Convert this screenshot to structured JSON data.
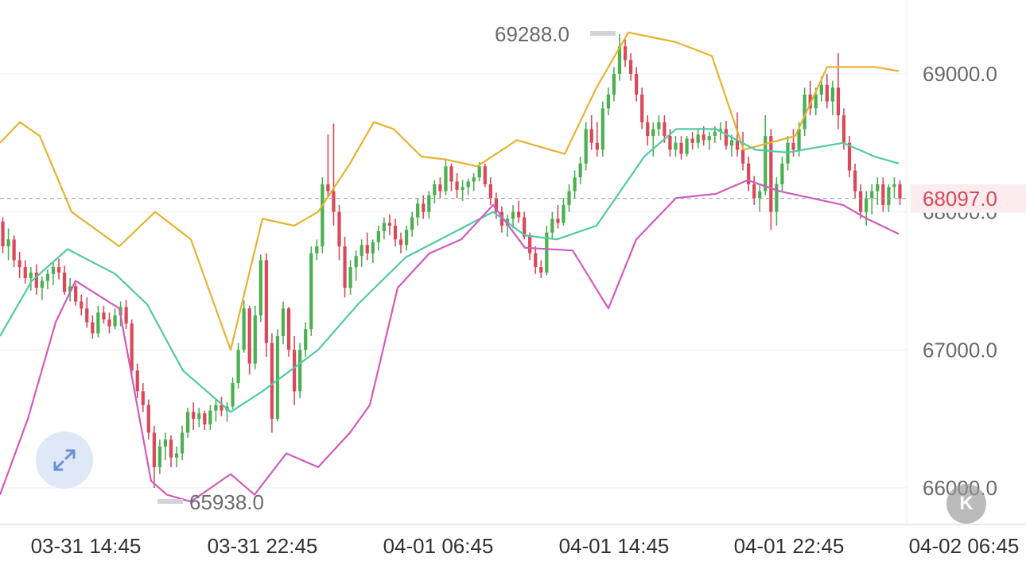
{
  "chart_data": {
    "type": "candlestick",
    "x_start_label": "03-31 14:45",
    "time_labels": [
      "03-31 14:45",
      "03-31 22:45",
      "04-01 06:45",
      "04-01 14:45",
      "04-01 22:45",
      "04-02 06:45"
    ],
    "y_ticks": [
      "69000.0",
      "68000.0",
      "67000.0",
      "66000.0"
    ],
    "ylim": [
      65850,
      69420
    ],
    "max_label": "69288.0",
    "min_label": "65938.0",
    "last_price": "68097.0",
    "last_price_value": 68097,
    "candles": [
      [
        67930,
        67960,
        67700,
        67750
      ],
      [
        67750,
        67880,
        67650,
        67800
      ],
      [
        67800,
        67830,
        67600,
        67650
      ],
      [
        67650,
        67710,
        67520,
        67600
      ],
      [
        67600,
        67650,
        67480,
        67520
      ],
      [
        67520,
        67600,
        67430,
        67560
      ],
      [
        67560,
        67620,
        67400,
        67450
      ],
      [
        67450,
        67530,
        67360,
        67500
      ],
      [
        67500,
        67580,
        67440,
        67550
      ],
      [
        67550,
        67640,
        67470,
        67600
      ],
      [
        67600,
        67660,
        67510,
        67560
      ],
      [
        67560,
        67610,
        67400,
        67420
      ],
      [
        67420,
        67520,
        67350,
        67460
      ],
      [
        67460,
        67480,
        67320,
        67350
      ],
      [
        67350,
        67400,
        67250,
        67300
      ],
      [
        67300,
        67380,
        67160,
        67200
      ],
      [
        67200,
        67250,
        67080,
        67120
      ],
      [
        67120,
        67320,
        67090,
        67270
      ],
      [
        67270,
        67320,
        67190,
        67220
      ],
      [
        67220,
        67270,
        67120,
        67170
      ],
      [
        67170,
        67300,
        67150,
        67250
      ],
      [
        67250,
        67350,
        67170,
        67310
      ],
      [
        67310,
        67360,
        67150,
        67190
      ],
      [
        67190,
        67220,
        66800,
        66850
      ],
      [
        66850,
        66900,
        66650,
        66700
      ],
      [
        66700,
        66760,
        66550,
        66600
      ],
      [
        66600,
        66640,
        66350,
        66400
      ],
      [
        66400,
        66450,
        66000,
        66150
      ],
      [
        66150,
        66350,
        66100,
        66300
      ],
      [
        66300,
        66400,
        66200,
        66350
      ],
      [
        66350,
        66380,
        66150,
        66220
      ],
      [
        66220,
        66300,
        66150,
        66250
      ],
      [
        66250,
        66450,
        66200,
        66400
      ],
      [
        66400,
        66580,
        66360,
        66550
      ],
      [
        66550,
        66620,
        66420,
        66500
      ],
      [
        66500,
        66580,
        66440,
        66540
      ],
      [
        66540,
        66560,
        66420,
        66460
      ],
      [
        66460,
        66600,
        66420,
        66560
      ],
      [
        66560,
        66640,
        66480,
        66600
      ],
      [
        66600,
        66660,
        66520,
        66560
      ],
      [
        66560,
        66620,
        66480,
        66590
      ],
      [
        66590,
        66800,
        66570,
        66760
      ],
      [
        66760,
        67050,
        66720,
        67000
      ],
      [
        67000,
        67360,
        66980,
        67300
      ],
      [
        67300,
        67320,
        66820,
        66900
      ],
      [
        66900,
        67320,
        66860,
        67250
      ],
      [
        67250,
        67690,
        67200,
        67650
      ],
      [
        67650,
        67700,
        66950,
        67050
      ],
      [
        67050,
        67120,
        66400,
        66500
      ],
      [
        66500,
        67150,
        66480,
        67100
      ],
      [
        67100,
        67350,
        67040,
        67300
      ],
      [
        67300,
        67310,
        66950,
        67000
      ],
      [
        67000,
        67100,
        66600,
        66700
      ],
      [
        66700,
        67050,
        66650,
        67000
      ],
      [
        67000,
        67200,
        66950,
        67150
      ],
      [
        67150,
        67750,
        67100,
        67700
      ],
      [
        67700,
        67800,
        67650,
        67750
      ],
      [
        67750,
        68250,
        67700,
        68200
      ],
      [
        68200,
        68560,
        68100,
        68150
      ],
      [
        68150,
        68640,
        67900,
        68000
      ],
      [
        68000,
        68050,
        67650,
        67750
      ],
      [
        67750,
        67820,
        67380,
        67450
      ],
      [
        67450,
        67650,
        67400,
        67600
      ],
      [
        67600,
        67720,
        67500,
        67680
      ],
      [
        67680,
        67800,
        67600,
        67760
      ],
      [
        67760,
        67850,
        67650,
        67700
      ],
      [
        67700,
        67800,
        67630,
        67780
      ],
      [
        67780,
        67900,
        67720,
        67860
      ],
      [
        67860,
        67960,
        67800,
        67920
      ],
      [
        67920,
        67980,
        67830,
        67900
      ],
      [
        67900,
        67950,
        67750,
        67800
      ],
      [
        67800,
        67850,
        67700,
        67760
      ],
      [
        67760,
        67900,
        67720,
        67870
      ],
      [
        67870,
        68000,
        67820,
        67960
      ],
      [
        67960,
        68100,
        67900,
        68060
      ],
      [
        68060,
        68120,
        67950,
        68000
      ],
      [
        68000,
        68150,
        67950,
        68120
      ],
      [
        68120,
        68230,
        68060,
        68200
      ],
      [
        68200,
        68250,
        68100,
        68150
      ],
      [
        68150,
        68380,
        68120,
        68330
      ],
      [
        68330,
        68350,
        68150,
        68220
      ],
      [
        68220,
        68280,
        68100,
        68160
      ],
      [
        68160,
        68230,
        68080,
        68180
      ],
      [
        68180,
        68240,
        68120,
        68220
      ],
      [
        68220,
        68280,
        68150,
        68250
      ],
      [
        68250,
        68360,
        68220,
        68330
      ],
      [
        68330,
        68350,
        68180,
        68200
      ],
      [
        68200,
        68250,
        68050,
        68100
      ],
      [
        68100,
        68140,
        67950,
        68000
      ],
      [
        68000,
        68040,
        67850,
        67900
      ],
      [
        67900,
        67980,
        67820,
        67950
      ],
      [
        67950,
        68050,
        67880,
        68000
      ],
      [
        68000,
        68080,
        67920,
        67960
      ],
      [
        67960,
        68000,
        67800,
        67820
      ],
      [
        67820,
        67850,
        67650,
        67700
      ],
      [
        67700,
        67750,
        67550,
        67600
      ],
      [
        67600,
        67650,
        67520,
        67560
      ],
      [
        67560,
        67900,
        67540,
        67850
      ],
      [
        67850,
        68000,
        67800,
        67950
      ],
      [
        67950,
        68050,
        67880,
        67920
      ],
      [
        67920,
        68100,
        67900,
        68050
      ],
      [
        68050,
        68200,
        68000,
        68150
      ],
      [
        68150,
        68300,
        68100,
        68250
      ],
      [
        68250,
        68400,
        68200,
        68350
      ],
      [
        68350,
        68650,
        68300,
        68600
      ],
      [
        68600,
        68700,
        68450,
        68500
      ],
      [
        68500,
        68650,
        68400,
        68450
      ],
      [
        68450,
        68800,
        68400,
        68750
      ],
      [
        68750,
        68900,
        68700,
        68850
      ],
      [
        68850,
        69050,
        68800,
        69000
      ],
      [
        69000,
        69288,
        68950,
        69200
      ],
      [
        69200,
        69250,
        69050,
        69100
      ],
      [
        69100,
        69150,
        68950,
        69000
      ],
      [
        69000,
        69050,
        68800,
        68850
      ],
      [
        68850,
        68900,
        68600,
        68650
      ],
      [
        68650,
        68700,
        68480,
        68550
      ],
      [
        68550,
        68650,
        68400,
        68600
      ],
      [
        68600,
        68700,
        68550,
        68650
      ],
      [
        68650,
        68700,
        68500,
        68550
      ],
      [
        68550,
        68600,
        68400,
        68450
      ],
      [
        68450,
        68550,
        68400,
        68500
      ],
      [
        68500,
        68550,
        68380,
        68420
      ],
      [
        68420,
        68550,
        68400,
        68530
      ],
      [
        68530,
        68580,
        68450,
        68500
      ],
      [
        68500,
        68600,
        68460,
        68560
      ],
      [
        68560,
        68620,
        68480,
        68520
      ],
      [
        68520,
        68580,
        68450,
        68550
      ],
      [
        68550,
        68620,
        68500,
        68580
      ],
      [
        68580,
        68650,
        68520,
        68600
      ],
      [
        68600,
        68660,
        68450,
        68480
      ],
      [
        68480,
        68560,
        68400,
        68520
      ],
      [
        68520,
        68720,
        68400,
        68450
      ],
      [
        68450,
        68580,
        68300,
        68350
      ],
      [
        68350,
        68400,
        68150,
        68200
      ],
      [
        68200,
        68260,
        68050,
        68100
      ],
      [
        68100,
        68200,
        68000,
        68150
      ],
      [
        68150,
        68700,
        68120,
        68550
      ],
      [
        68550,
        68600,
        67870,
        68000
      ],
      [
        68000,
        68250,
        67900,
        68200
      ],
      [
        68200,
        68400,
        68150,
        68350
      ],
      [
        68350,
        68550,
        68300,
        68500
      ],
      [
        68500,
        68600,
        68400,
        68450
      ],
      [
        68450,
        68650,
        68400,
        68600
      ],
      [
        68600,
        68900,
        68550,
        68850
      ],
      [
        68850,
        68950,
        68700,
        68750
      ],
      [
        68750,
        68900,
        68700,
        68850
      ],
      [
        68850,
        68980,
        68800,
        68920
      ],
      [
        68920,
        69000,
        68750,
        68800
      ],
      [
        68800,
        68950,
        68700,
        68900
      ],
      [
        68900,
        69150,
        68600,
        68700
      ],
      [
        68700,
        68750,
        68450,
        68500
      ],
      [
        68500,
        68550,
        68250,
        68300
      ],
      [
        68300,
        68350,
        68100,
        68150
      ],
      [
        68150,
        68200,
        67950,
        68000
      ],
      [
        68000,
        68150,
        67900,
        68100
      ],
      [
        68100,
        68200,
        67980,
        68150
      ],
      [
        68150,
        68250,
        68050,
        68200
      ],
      [
        68200,
        68250,
        68000,
        68050
      ],
      [
        68050,
        68200,
        68000,
        68180
      ],
      [
        68180,
        68250,
        68100,
        68200
      ],
      [
        68200,
        68230,
        68050,
        68097
      ]
    ],
    "bollinger_upper": [
      [
        0,
        68500
      ],
      [
        25,
        68650
      ],
      [
        50,
        68550
      ],
      [
        90,
        68000
      ],
      [
        150,
        67750
      ],
      [
        195,
        68000
      ],
      [
        240,
        67800
      ],
      [
        290,
        67000
      ],
      [
        330,
        67950
      ],
      [
        370,
        67900
      ],
      [
        400,
        68000
      ],
      [
        440,
        68350
      ],
      [
        470,
        68650
      ],
      [
        495,
        68600
      ],
      [
        530,
        68400
      ],
      [
        560,
        68380
      ],
      [
        600,
        68330
      ],
      [
        650,
        68520
      ],
      [
        710,
        68420
      ],
      [
        750,
        68900
      ],
      [
        790,
        69300
      ],
      [
        850,
        69230
      ],
      [
        895,
        69130
      ],
      [
        935,
        68450
      ],
      [
        1000,
        68550
      ],
      [
        1040,
        69050
      ],
      [
        1100,
        69050
      ],
      [
        1130,
        69020
      ]
    ],
    "bollinger_middle": [
      [
        0,
        67100
      ],
      [
        40,
        67500
      ],
      [
        85,
        67730
      ],
      [
        145,
        67550
      ],
      [
        185,
        67330
      ],
      [
        230,
        66850
      ],
      [
        260,
        66700
      ],
      [
        290,
        66550
      ],
      [
        330,
        66700
      ],
      [
        400,
        67000
      ],
      [
        450,
        67330
      ],
      [
        510,
        67670
      ],
      [
        580,
        67880
      ],
      [
        620,
        68000
      ],
      [
        660,
        67830
      ],
      [
        700,
        67800
      ],
      [
        750,
        67900
      ],
      [
        810,
        68400
      ],
      [
        850,
        68600
      ],
      [
        900,
        68600
      ],
      [
        950,
        68450
      ],
      [
        990,
        68430
      ],
      [
        1060,
        68500
      ],
      [
        1100,
        68400
      ],
      [
        1130,
        68350
      ]
    ],
    "bollinger_lower": [
      [
        0,
        65950
      ],
      [
        35,
        66500
      ],
      [
        70,
        67200
      ],
      [
        95,
        67500
      ],
      [
        150,
        67300
      ],
      [
        190,
        66050
      ],
      [
        210,
        65950
      ],
      [
        240,
        65900
      ],
      [
        290,
        66100
      ],
      [
        320,
        65950
      ],
      [
        360,
        66250
      ],
      [
        400,
        66150
      ],
      [
        440,
        66400
      ],
      [
        465,
        66600
      ],
      [
        500,
        67450
      ],
      [
        540,
        67700
      ],
      [
        580,
        67800
      ],
      [
        620,
        68050
      ],
      [
        660,
        67740
      ],
      [
        720,
        67720
      ],
      [
        765,
        67300
      ],
      [
        800,
        67800
      ],
      [
        850,
        68100
      ],
      [
        900,
        68130
      ],
      [
        940,
        68230
      ],
      [
        980,
        68150
      ],
      [
        1060,
        68050
      ],
      [
        1090,
        67950
      ],
      [
        1130,
        67840
      ]
    ],
    "colors": {
      "up": "#4caf50",
      "down": "#d9495a",
      "bollinger_upper": "#e8b230",
      "bollinger_middle": "#52c9a4",
      "bollinger_lower": "#d15bbd",
      "last_price": "#d9495a"
    }
  },
  "badge": {
    "label": "K"
  }
}
